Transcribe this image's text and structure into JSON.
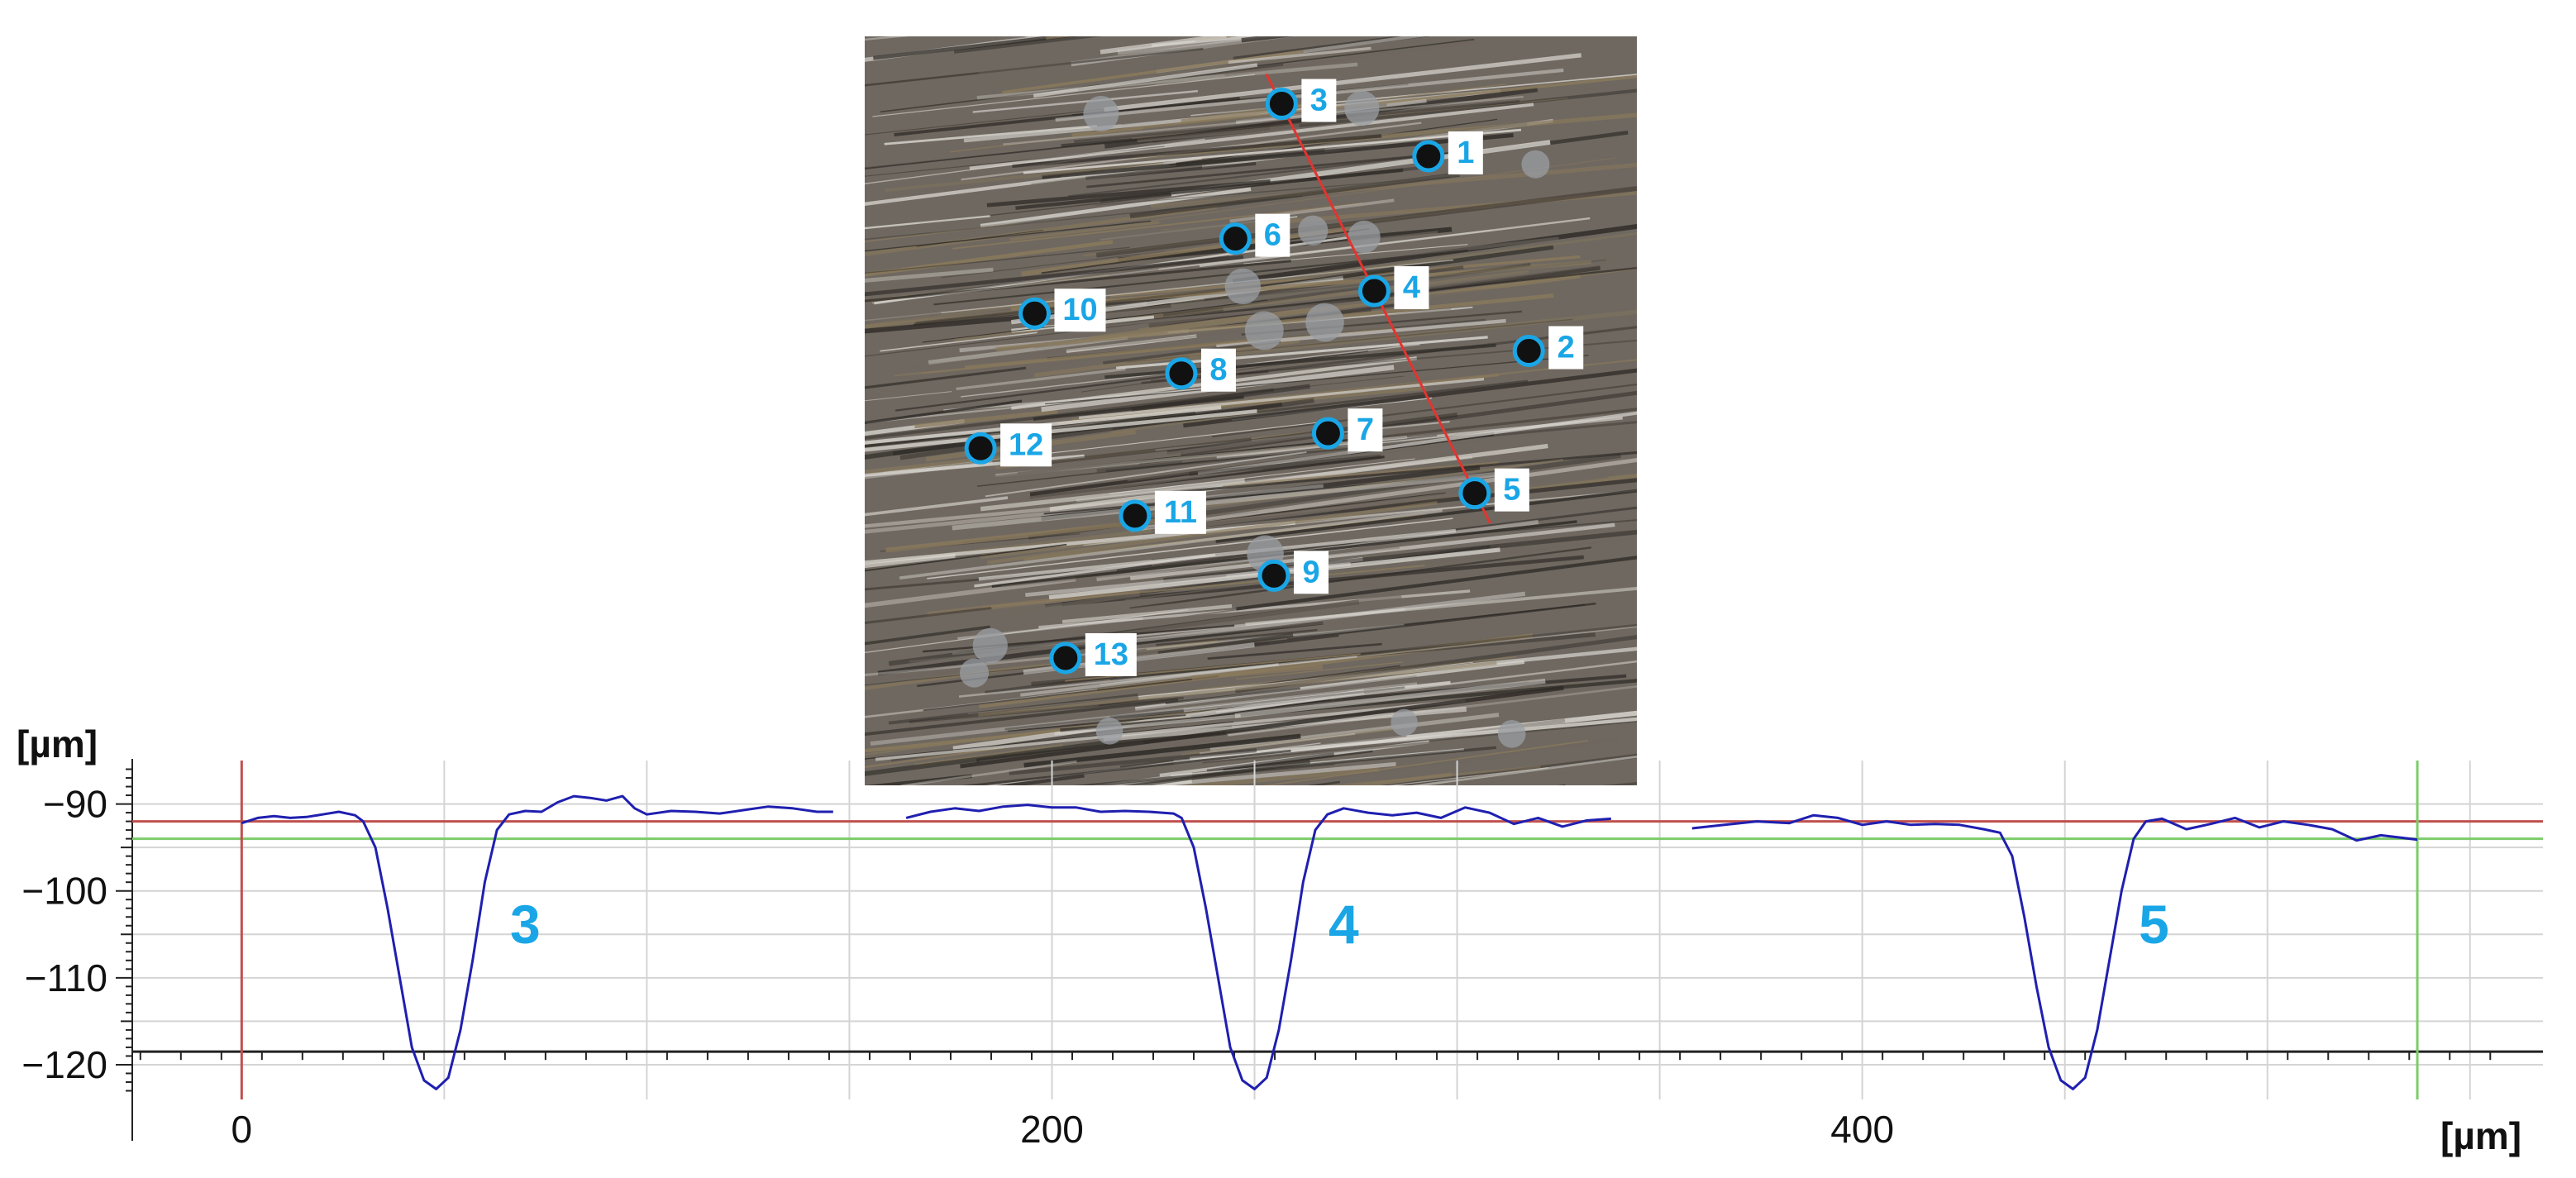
{
  "micrograph": {
    "texture": "brushed-metal-surface",
    "colors": {
      "dark": "#2e2a26",
      "mid": "#6f6860",
      "light": "#d9d6d0",
      "bronze": "#8a7a5c",
      "scan_line": "#e3342f"
    },
    "markers": [
      {
        "label": "1",
        "col": 0.73,
        "row": 0.16
      },
      {
        "label": "2",
        "col": 0.86,
        "row": 0.42
      },
      {
        "label": "3",
        "col": 0.54,
        "row": 0.09
      },
      {
        "label": "4",
        "col": 0.66,
        "row": 0.34
      },
      {
        "label": "5",
        "col": 0.79,
        "row": 0.61
      },
      {
        "label": "6",
        "col": 0.48,
        "row": 0.27
      },
      {
        "label": "7",
        "col": 0.6,
        "row": 0.53
      },
      {
        "label": "8",
        "col": 0.41,
        "row": 0.45
      },
      {
        "label": "9",
        "col": 0.53,
        "row": 0.72
      },
      {
        "label": "10",
        "col": 0.22,
        "row": 0.37
      },
      {
        "label": "11",
        "col": 0.35,
        "row": 0.64
      },
      {
        "label": "12",
        "col": 0.15,
        "row": 0.55
      },
      {
        "label": "13",
        "col": 0.26,
        "row": 0.83
      }
    ],
    "scan_line": {
      "from": [
        0.52,
        0.05
      ],
      "to": [
        0.81,
        0.65
      ]
    },
    "marker_colors": {
      "ring": "#1aa6e6",
      "dot": "#111111",
      "label_text": "#1aa6e6",
      "label_bg": "#ffffff"
    }
  },
  "chart_data": {
    "type": "line",
    "ylabel": "[µm]",
    "xlabel": "[µm]",
    "xlim": [
      -27,
      568
    ],
    "ylim": [
      -124,
      -85
    ],
    "x_ticks": [
      0,
      200,
      400
    ],
    "y_ticks": [
      -90,
      -100,
      -110,
      -120
    ],
    "grid": true,
    "colors": {
      "profile": "#1f1fb0",
      "red_ref": "#c0504d",
      "green_ref": "#7ccc6a",
      "grid": "#d4d4d4",
      "axis": "#222222",
      "label": "#1aa6e6"
    },
    "reference_lines": [
      {
        "axis": "y",
        "value": -92,
        "color": "red"
      },
      {
        "axis": "y",
        "value": -94,
        "color": "green"
      },
      {
        "axis": "x",
        "value": 0,
        "color": "red"
      },
      {
        "axis": "x",
        "value": 537,
        "color": "green"
      }
    ],
    "series": [
      {
        "values": [
          [
            0,
            -92.2
          ],
          [
            4,
            -91.6
          ],
          [
            8,
            -91.4
          ],
          [
            12,
            -91.6
          ],
          [
            16,
            -91.5
          ],
          [
            20,
            -91.2
          ],
          [
            24,
            -90.9
          ],
          [
            28,
            -91.3
          ],
          [
            30,
            -92.0
          ],
          [
            33,
            -95
          ],
          [
            36,
            -102
          ],
          [
            39,
            -110
          ],
          [
            42,
            -118
          ],
          [
            45,
            -121.8
          ],
          [
            48,
            -122.8
          ],
          [
            51,
            -121.5
          ],
          [
            54,
            -116
          ],
          [
            57,
            -108
          ],
          [
            60,
            -99
          ],
          [
            63,
            -93
          ],
          [
            66,
            -91.2
          ],
          [
            70,
            -90.8
          ],
          [
            74,
            -90.9
          ],
          [
            78,
            -89.8
          ],
          [
            82,
            -89.1
          ],
          [
            86,
            -89.3
          ],
          [
            90,
            -89.6
          ],
          [
            94,
            -89.1
          ],
          [
            97,
            -90.5
          ],
          [
            100,
            -91.2
          ],
          [
            106,
            -90.8
          ],
          [
            112,
            -90.9
          ],
          [
            118,
            -91.1
          ],
          [
            124,
            -90.7
          ],
          [
            130,
            -90.3
          ],
          [
            136,
            -90.5
          ],
          [
            142,
            -90.9
          ],
          [
            146,
            -90.9
          ]
        ]
      },
      {
        "values": [
          [
            164,
            -91.6
          ],
          [
            170,
            -90.9
          ],
          [
            176,
            -90.5
          ],
          [
            182,
            -90.8
          ],
          [
            188,
            -90.3
          ],
          [
            194,
            -90.1
          ],
          [
            200,
            -90.4
          ],
          [
            206,
            -90.4
          ],
          [
            212,
            -90.9
          ],
          [
            218,
            -90.8
          ],
          [
            224,
            -90.9
          ],
          [
            230,
            -91.1
          ],
          [
            232,
            -91.6
          ],
          [
            235,
            -95
          ],
          [
            238,
            -102
          ],
          [
            241,
            -110
          ],
          [
            244,
            -118
          ],
          [
            247,
            -121.8
          ],
          [
            250,
            -122.8
          ],
          [
            253,
            -121.5
          ],
          [
            256,
            -116
          ],
          [
            259,
            -108
          ],
          [
            262,
            -99
          ],
          [
            265,
            -93
          ],
          [
            268,
            -91.2
          ],
          [
            272,
            -90.5
          ],
          [
            278,
            -91
          ],
          [
            284,
            -91.3
          ],
          [
            290,
            -91.0
          ],
          [
            296,
            -91.6
          ],
          [
            302,
            -90.4
          ],
          [
            308,
            -91.0
          ],
          [
            314,
            -92.3
          ],
          [
            320,
            -91.6
          ],
          [
            326,
            -92.6
          ],
          [
            332,
            -91.9
          ],
          [
            338,
            -91.7
          ]
        ]
      },
      {
        "values": [
          [
            358,
            -92.8
          ],
          [
            366,
            -92.4
          ],
          [
            374,
            -92.0
          ],
          [
            382,
            -92.2
          ],
          [
            388,
            -91.3
          ],
          [
            394,
            -91.6
          ],
          [
            400,
            -92.4
          ],
          [
            406,
            -92.0
          ],
          [
            412,
            -92.4
          ],
          [
            418,
            -92.3
          ],
          [
            424,
            -92.4
          ],
          [
            430,
            -92.9
          ],
          [
            434,
            -93.3
          ],
          [
            437,
            -96
          ],
          [
            440,
            -103
          ],
          [
            443,
            -111
          ],
          [
            446,
            -118
          ],
          [
            449,
            -121.8
          ],
          [
            452,
            -122.8
          ],
          [
            455,
            -121.5
          ],
          [
            458,
            -116
          ],
          [
            461,
            -108
          ],
          [
            464,
            -100
          ],
          [
            467,
            -94
          ],
          [
            470,
            -92.0
          ],
          [
            474,
            -91.7
          ],
          [
            480,
            -92.9
          ],
          [
            486,
            -92.3
          ],
          [
            492,
            -91.6
          ],
          [
            498,
            -92.7
          ],
          [
            504,
            -92.0
          ],
          [
            510,
            -92.4
          ],
          [
            516,
            -92.9
          ],
          [
            522,
            -94.2
          ],
          [
            528,
            -93.6
          ],
          [
            537,
            -94.1
          ]
        ]
      }
    ],
    "annotations": [
      {
        "text": "3",
        "x": 70,
        "y": -106
      },
      {
        "text": "4",
        "x": 272,
        "y": -106
      },
      {
        "text": "5",
        "x": 472,
        "y": -106
      }
    ]
  }
}
